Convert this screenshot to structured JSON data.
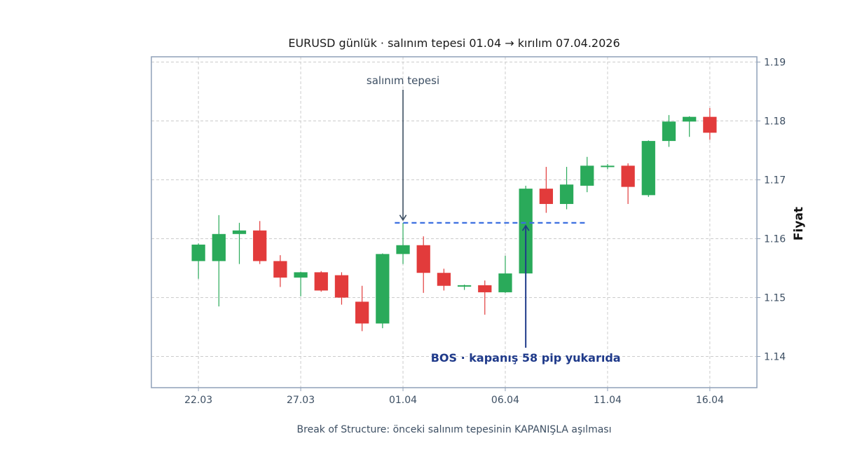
{
  "chart_data": {
    "type": "candlestick",
    "title": "EURUSD günlük · salınım tepesi 01.04 → kırılım 07.04.2026",
    "xlabel": "Break of Structure: önceki salınım tepesinin KAPANIŞLA aşılması",
    "ylabel": "Fiyat",
    "ylim": [
      1.1347,
      1.1909
    ],
    "y_ticks": [
      1.14,
      1.15,
      1.16,
      1.17,
      1.18,
      1.19
    ],
    "y_tick_labels": [
      "1.14",
      "1.15",
      "1.16",
      "1.17",
      "1.18",
      "1.19"
    ],
    "x_ticks": [
      {
        "date": "2026-03-22",
        "label": "22.03"
      },
      {
        "date": "2026-03-27",
        "label": "27.03"
      },
      {
        "date": "2026-04-01",
        "label": "01.04"
      },
      {
        "date": "2026-04-06",
        "label": "06.04"
      },
      {
        "date": "2026-04-11",
        "label": "11.04"
      },
      {
        "date": "2026-04-16",
        "label": "16.04"
      }
    ],
    "x_range": [
      "2026-03-19.7",
      "2026-04-18.3"
    ],
    "grid": true,
    "colors": {
      "up": "#2aaa5a",
      "down": "#e23b3b",
      "level": "#3b6fe0",
      "annotation": "#1f3a8a",
      "axis_text": "#3d4f63",
      "frame": "#8fa0b8"
    },
    "candles": [
      {
        "date": "2026-03-22",
        "open": 1.1562,
        "high": 1.1592,
        "low": 1.1532,
        "close": 1.159
      },
      {
        "date": "2026-03-23",
        "open": 1.1562,
        "high": 1.164,
        "low": 1.1485,
        "close": 1.1608
      },
      {
        "date": "2026-03-24",
        "open": 1.1608,
        "high": 1.1627,
        "low": 1.1557,
        "close": 1.1614
      },
      {
        "date": "2026-03-25",
        "open": 1.1614,
        "high": 1.163,
        "low": 1.1557,
        "close": 1.1562
      },
      {
        "date": "2026-03-26",
        "open": 1.1562,
        "high": 1.1572,
        "low": 1.1518,
        "close": 1.1534
      },
      {
        "date": "2026-03-27",
        "open": 1.1534,
        "high": 1.1544,
        "low": 1.1502,
        "close": 1.1543
      },
      {
        "date": "2026-03-28",
        "open": 1.1543,
        "high": 1.1545,
        "low": 1.151,
        "close": 1.1512
      },
      {
        "date": "2026-03-29",
        "open": 1.1538,
        "high": 1.1543,
        "low": 1.1488,
        "close": 1.15
      },
      {
        "date": "2026-03-30",
        "open": 1.1493,
        "high": 1.152,
        "low": 1.1443,
        "close": 1.1456
      },
      {
        "date": "2026-03-31",
        "open": 1.1456,
        "high": 1.1575,
        "low": 1.1448,
        "close": 1.1574
      },
      {
        "date": "2026-04-01",
        "open": 1.1574,
        "high": 1.1627,
        "low": 1.1557,
        "close": 1.1589
      },
      {
        "date": "2026-04-02",
        "open": 1.1589,
        "high": 1.1604,
        "low": 1.1508,
        "close": 1.1542
      },
      {
        "date": "2026-04-03",
        "open": 1.1542,
        "high": 1.1549,
        "low": 1.1512,
        "close": 1.152
      },
      {
        "date": "2026-04-04",
        "open": 1.152,
        "high": 1.1522,
        "low": 1.1513,
        "close": 1.1521
      },
      {
        "date": "2026-04-05",
        "open": 1.1521,
        "high": 1.1529,
        "low": 1.1471,
        "close": 1.1509
      },
      {
        "date": "2026-04-06",
        "open": 1.1509,
        "high": 1.1571,
        "low": 1.1508,
        "close": 1.1541
      },
      {
        "date": "2026-04-07",
        "open": 1.1541,
        "high": 1.169,
        "low": 1.1541,
        "close": 1.1685
      },
      {
        "date": "2026-04-08",
        "open": 1.1685,
        "high": 1.1722,
        "low": 1.1644,
        "close": 1.1659
      },
      {
        "date": "2026-04-09",
        "open": 1.1659,
        "high": 1.1722,
        "low": 1.165,
        "close": 1.1692
      },
      {
        "date": "2026-04-10",
        "open": 1.169,
        "high": 1.1739,
        "low": 1.1679,
        "close": 1.1724
      },
      {
        "date": "2026-04-11",
        "open": 1.1722,
        "high": 1.1727,
        "low": 1.1718,
        "close": 1.1724
      },
      {
        "date": "2026-04-12",
        "open": 1.1724,
        "high": 1.1728,
        "low": 1.1659,
        "close": 1.1688
      },
      {
        "date": "2026-04-13",
        "open": 1.1674,
        "high": 1.1767,
        "low": 1.1671,
        "close": 1.1766
      },
      {
        "date": "2026-04-14",
        "open": 1.1766,
        "high": 1.181,
        "low": 1.1756,
        "close": 1.1799
      },
      {
        "date": "2026-04-15",
        "open": 1.1799,
        "high": 1.1808,
        "low": 1.1773,
        "close": 1.1807
      },
      {
        "date": "2026-04-16",
        "open": 1.1807,
        "high": 1.1822,
        "low": 1.1768,
        "close": 1.178
      }
    ],
    "level": {
      "price": 1.1627,
      "from": "2026-03-31.6",
      "to": "2026-04-10"
    },
    "annotations": [
      {
        "text": "salınım tepesi",
        "target_date": "2026-04-01",
        "target_price": 1.1627
      },
      {
        "text": "BOS · kapanış 58 pip yukarıda",
        "target_date": "2026-04-07",
        "target_price": 1.1627
      }
    ]
  }
}
